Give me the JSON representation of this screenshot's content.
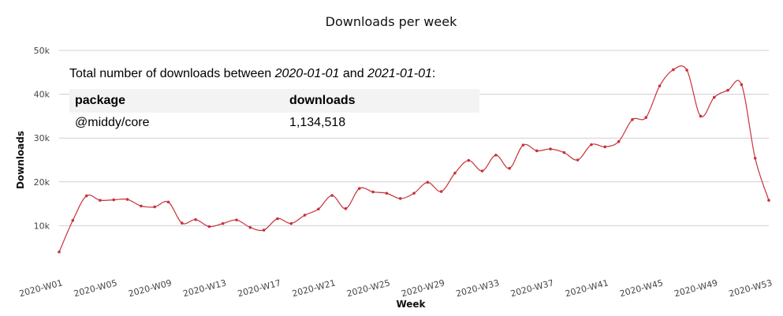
{
  "chart_data": {
    "type": "line",
    "title": "Downloads per week",
    "xlabel": "Week",
    "ylabel": "Downloads",
    "ylim": [
      0,
      50000
    ],
    "yticks": [
      {
        "value": 10000,
        "label": "10k"
      },
      {
        "value": 20000,
        "label": "20k"
      },
      {
        "value": 30000,
        "label": "30k"
      },
      {
        "value": 40000,
        "label": "40k"
      },
      {
        "value": 50000,
        "label": "50k"
      }
    ],
    "grid": true,
    "line_color": "#c8323c",
    "x": [
      "2020-W01",
      "2020-W02",
      "2020-W03",
      "2020-W04",
      "2020-W05",
      "2020-W06",
      "2020-W07",
      "2020-W08",
      "2020-W09",
      "2020-W10",
      "2020-W11",
      "2020-W12",
      "2020-W13",
      "2020-W14",
      "2020-W15",
      "2020-W16",
      "2020-W17",
      "2020-W18",
      "2020-W19",
      "2020-W20",
      "2020-W21",
      "2020-W22",
      "2020-W23",
      "2020-W24",
      "2020-W25",
      "2020-W26",
      "2020-W27",
      "2020-W28",
      "2020-W29",
      "2020-W30",
      "2020-W31",
      "2020-W32",
      "2020-W33",
      "2020-W34",
      "2020-W35",
      "2020-W36",
      "2020-W37",
      "2020-W38",
      "2020-W39",
      "2020-W40",
      "2020-W41",
      "2020-W42",
      "2020-W43",
      "2020-W44",
      "2020-W45",
      "2020-W46",
      "2020-W47",
      "2020-W48",
      "2020-W49",
      "2020-W50",
      "2020-W51",
      "2020-W52",
      "2020-W53"
    ],
    "xtick_labels": [
      "2020-W01",
      "2020-W05",
      "2020-W09",
      "2020-W13",
      "2020-W17",
      "2020-W21",
      "2020-W25",
      "2020-W29",
      "2020-W33",
      "2020-W37",
      "2020-W41",
      "2020-W45",
      "2020-W49",
      "2020-W53"
    ],
    "series": [
      {
        "values": [
          4000,
          11200,
          16800,
          15800,
          15900,
          16000,
          14500,
          14300,
          15400,
          10600,
          11400,
          9800,
          10500,
          11300,
          9600,
          9000,
          11600,
          10500,
          12400,
          13800,
          16900,
          13900,
          18500,
          17700,
          17400,
          16200,
          17400,
          19900,
          17800,
          22000,
          24900,
          22500,
          26100,
          23100,
          28400,
          27100,
          27500,
          26700,
          25000,
          28500,
          28000,
          29200,
          34200,
          34700,
          41900,
          45600,
          45500,
          35000,
          39300,
          40900,
          42200,
          25400,
          15800
        ]
      }
    ]
  },
  "summary": {
    "prefix": "Total number of downloads between ",
    "start_date": "2020-01-01",
    "middle": " and ",
    "end_date": "2021-01-01",
    "suffix": ":",
    "columns": [
      "package",
      "downloads"
    ],
    "rows": [
      {
        "package": "@middy/core",
        "downloads": "1,134,518"
      }
    ]
  }
}
